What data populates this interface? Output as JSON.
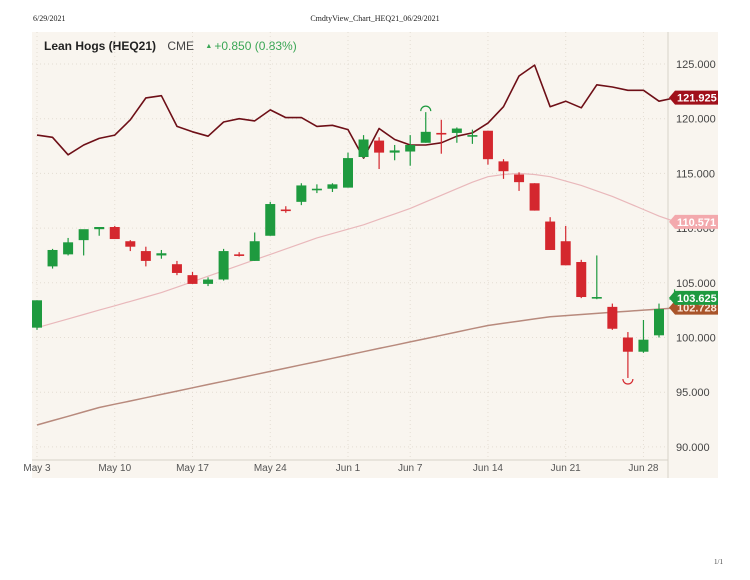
{
  "print": {
    "date": "6/29/2021",
    "title": "CmdtyView_Chart_HEQ21_06/29/2021",
    "page": "1/1"
  },
  "header": {
    "name": "Lean Hogs (HEQ21)",
    "exchange": "CME",
    "change_arrow": "▲",
    "change": "+0.850 (0.83%)"
  },
  "colors": {
    "background": "#f9f5ef",
    "up": "#1e9a3f",
    "down": "#d4272e",
    "upper_line": "#6e0f17",
    "ma_short": "#e9b8bb",
    "ma_long": "#b88a7d",
    "label_upper": "#a0101a",
    "label_short": "#f3a9ad",
    "label_price": "#1e9a3f",
    "label_long": "#a9542a"
  },
  "chart_data": {
    "type": "candlestick",
    "title": "Lean Hogs (HEQ21) CME",
    "xlabel": "",
    "ylabel": "",
    "ylim": [
      89,
      127
    ],
    "y_ticks": [
      90,
      95,
      100,
      105,
      110,
      115,
      120,
      125
    ],
    "y_tick_labels": [
      "90.000",
      "95.000",
      "100.000",
      "105.000",
      "110.000",
      "115.000",
      "120.000",
      "125.000"
    ],
    "x_ticks": [
      {
        "label": "May 3",
        "index": 0
      },
      {
        "label": "May 10",
        "index": 5
      },
      {
        "label": "May 17",
        "index": 10
      },
      {
        "label": "May 24",
        "index": 15
      },
      {
        "label": "Jun 1",
        "index": 20
      },
      {
        "label": "Jun 7",
        "index": 24
      },
      {
        "label": "Jun 14",
        "index": 29
      },
      {
        "label": "Jun 21",
        "index": 34
      },
      {
        "label": "Jun 28",
        "index": 39
      }
    ],
    "candles": [
      {
        "o": 100.9,
        "h": 103.4,
        "l": 100.7,
        "c": 103.4
      },
      {
        "o": 106.5,
        "h": 108.1,
        "l": 106.3,
        "c": 108.0
      },
      {
        "o": 107.6,
        "h": 109.1,
        "l": 107.5,
        "c": 108.7
      },
      {
        "o": 108.9,
        "h": 109.3,
        "l": 107.5,
        "c": 109.9
      },
      {
        "o": 109.9,
        "h": 110.1,
        "l": 109.3,
        "c": 110.1
      },
      {
        "o": 110.1,
        "h": 110.2,
        "l": 109.0,
        "c": 109.0
      },
      {
        "o": 108.8,
        "h": 108.9,
        "l": 107.9,
        "c": 108.3
      },
      {
        "o": 107.9,
        "h": 108.3,
        "l": 106.5,
        "c": 107.0
      },
      {
        "o": 107.5,
        "h": 108.0,
        "l": 107.2,
        "c": 107.7
      },
      {
        "o": 106.7,
        "h": 107.0,
        "l": 105.7,
        "c": 105.9
      },
      {
        "o": 105.7,
        "h": 106.0,
        "l": 104.9,
        "c": 104.9
      },
      {
        "o": 104.9,
        "h": 105.5,
        "l": 104.7,
        "c": 105.3
      },
      {
        "o": 105.3,
        "h": 108.1,
        "l": 105.2,
        "c": 107.9
      },
      {
        "o": 107.6,
        "h": 107.8,
        "l": 107.4,
        "c": 107.5
      },
      {
        "o": 107.0,
        "h": 109.6,
        "l": 107.0,
        "c": 108.8
      },
      {
        "o": 109.3,
        "h": 112.4,
        "l": 109.3,
        "c": 112.2
      },
      {
        "o": 111.7,
        "h": 112.0,
        "l": 111.4,
        "c": 111.6
      },
      {
        "o": 112.4,
        "h": 114.1,
        "l": 112.1,
        "c": 113.9
      },
      {
        "o": 113.6,
        "h": 114.0,
        "l": 113.2,
        "c": 113.6
      },
      {
        "o": 113.6,
        "h": 114.1,
        "l": 113.3,
        "c": 114.0
      },
      {
        "o": 113.7,
        "h": 116.9,
        "l": 113.7,
        "c": 116.4
      },
      {
        "o": 116.5,
        "h": 118.5,
        "l": 116.4,
        "c": 118.1
      },
      {
        "o": 118.0,
        "h": 118.3,
        "l": 115.4,
        "c": 116.9
      },
      {
        "o": 116.9,
        "h": 117.6,
        "l": 116.2,
        "c": 117.1
      },
      {
        "o": 117.0,
        "h": 118.5,
        "l": 115.7,
        "c": 117.6
      },
      {
        "o": 117.8,
        "h": 120.6,
        "l": 117.8,
        "c": 118.8
      },
      {
        "o": 118.7,
        "h": 119.9,
        "l": 116.8,
        "c": 118.6
      },
      {
        "o": 118.7,
        "h": 119.2,
        "l": 117.8,
        "c": 119.1
      },
      {
        "o": 118.5,
        "h": 119.0,
        "l": 117.7,
        "c": 118.5
      },
      {
        "o": 118.9,
        "h": 118.9,
        "l": 115.8,
        "c": 116.3
      },
      {
        "o": 116.1,
        "h": 116.3,
        "l": 114.5,
        "c": 115.2
      },
      {
        "o": 114.9,
        "h": 115.1,
        "l": 113.4,
        "c": 114.2
      },
      {
        "o": 114.1,
        "h": 114.1,
        "l": 111.6,
        "c": 111.6
      },
      {
        "o": 110.6,
        "h": 111.0,
        "l": 108.0,
        "c": 108.0
      },
      {
        "o": 108.8,
        "h": 110.2,
        "l": 106.6,
        "c": 106.6
      },
      {
        "o": 106.9,
        "h": 107.1,
        "l": 103.6,
        "c": 103.7
      },
      {
        "o": 103.7,
        "h": 107.5,
        "l": 103.5,
        "c": 103.7
      },
      {
        "o": 102.8,
        "h": 103.1,
        "l": 100.7,
        "c": 100.8
      },
      {
        "o": 100.0,
        "h": 100.5,
        "l": 96.3,
        "c": 98.7
      },
      {
        "o": 98.7,
        "h": 101.6,
        "l": 98.6,
        "c": 99.8
      },
      {
        "o": 100.2,
        "h": 103.1,
        "l": 100.0,
        "c": 102.6
      },
      {
        "o": 103.6,
        "h": 104.4,
        "l": 102.8,
        "c": 103.6
      }
    ],
    "series": [
      {
        "name": "Upper Envelope",
        "price_label": "121.925",
        "values": [
          118.5,
          118.3,
          116.7,
          117.6,
          118.2,
          118.5,
          119.9,
          121.9,
          122.1,
          119.3,
          118.8,
          118.4,
          119.7,
          120.0,
          119.8,
          120.8,
          120.1,
          120.1,
          119.3,
          119.4,
          119.0,
          116.4,
          119.1,
          118.1,
          117.6,
          117.6,
          117.8,
          118.4,
          118.7,
          119.6,
          121.1,
          123.9,
          124.9,
          121.1,
          121.6,
          121.0,
          123.1,
          122.9,
          122.6,
          122.6,
          121.6,
          121.9
        ]
      },
      {
        "name": "Moving Average (short)",
        "price_label": "110.571",
        "values": [
          100.9,
          101.3,
          101.7,
          102.1,
          102.5,
          102.9,
          103.3,
          103.7,
          104.1,
          104.6,
          105.1,
          105.6,
          106.1,
          106.6,
          107.1,
          107.6,
          108.1,
          108.6,
          109.1,
          109.5,
          109.9,
          110.3,
          110.8,
          111.3,
          111.8,
          112.4,
          113.0,
          113.6,
          114.2,
          114.7,
          114.9,
          115.0,
          114.9,
          114.7,
          114.3,
          113.9,
          113.4,
          112.9,
          112.3,
          111.7,
          111.1,
          110.6
        ]
      },
      {
        "name": "Moving Average (long)",
        "price_label": "102.728",
        "values": [
          92.0,
          92.4,
          92.8,
          93.2,
          93.6,
          93.9,
          94.2,
          94.5,
          94.8,
          95.1,
          95.4,
          95.7,
          96.0,
          96.3,
          96.6,
          96.9,
          97.2,
          97.5,
          97.8,
          98.1,
          98.4,
          98.7,
          99.0,
          99.3,
          99.6,
          99.9,
          100.2,
          100.5,
          100.8,
          101.1,
          101.3,
          101.5,
          101.7,
          101.9,
          102.0,
          102.1,
          102.2,
          102.3,
          102.4,
          102.5,
          102.6,
          102.7
        ]
      }
    ],
    "last_price_label": "103.625",
    "annotations": [
      {
        "type": "high-marker",
        "index": 25
      },
      {
        "type": "low-marker",
        "index": 38
      }
    ]
  }
}
